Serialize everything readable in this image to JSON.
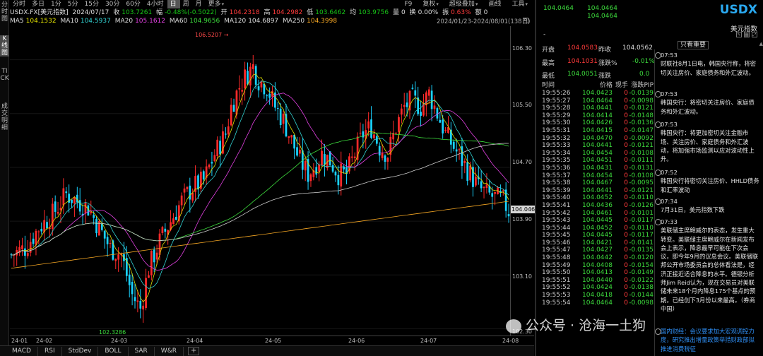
{
  "left_tabs": [
    {
      "label": "分时图",
      "selected": false
    },
    {
      "label": "K线图",
      "selected": true
    },
    {
      "label": "TICK",
      "selected": false
    },
    {
      "label": "成交明细",
      "selected": false
    }
  ],
  "toolbar": {
    "periods": [
      "分时",
      "多日",
      "1分",
      "5分",
      "15分",
      "30分",
      "60分",
      "4小时",
      "日",
      "周",
      "月",
      "更多"
    ],
    "selected": "日",
    "right_items": [
      "F9",
      "复权",
      "超级叠加",
      "画线",
      "工具"
    ]
  },
  "info_line": {
    "symbol": "USDX.FX[美元指数]",
    "date": "2024/07/17",
    "close_label": "收",
    "close": "103.7261",
    "change_label": "幅",
    "change": "-0.48%(-0.5022)",
    "open_label": "开",
    "open": "104.2318",
    "high_label": "高",
    "high": "104.2982",
    "low_label": "低",
    "low": "103.6462",
    "avg_label": "均",
    "avg": "103.9756",
    "vol_label": "量",
    "vol": "0",
    "turnover_label": "换",
    "turnover": "0.00%",
    "amp_label": "振",
    "amp": "0.63%",
    "amount_label": "额",
    "amount": "0"
  },
  "ma_line": [
    {
      "label": "MA5",
      "value": "104.1532",
      "color": "#e0e000"
    },
    {
      "label": "MA10",
      "value": "104.5937",
      "color": "#32d2d2"
    },
    {
      "label": "MA20",
      "value": "105.1612",
      "color": "#e040e0"
    },
    {
      "label": "MA60",
      "value": "104.9656",
      "color": "#3ddc3d"
    },
    {
      "label": "MA120",
      "value": "104.6897",
      "color": "#ddd"
    },
    {
      "label": "MA250",
      "value": "104.3998",
      "color": "#f5a623"
    }
  ],
  "range_label": "2024/01/23-2024/08/01(138日)",
  "chart_data": {
    "type": "candlestick",
    "ylim": [
      102.2,
      106.8
    ],
    "yticks": [
      "106.30",
      "105.50",
      "104.70",
      "103.90",
      "103.10",
      "102.30"
    ],
    "xticks": [
      "24-01",
      "24-02",
      "24-03",
      "24-04",
      "24-05",
      "24-06",
      "24-07",
      "24-08"
    ],
    "high_marker": "106.5207",
    "low_marker": "102.3286",
    "last_price_tag": "104.0464",
    "up_color": "#ff2a2a",
    "down_color": "#19d2ff"
  },
  "bottom_tabs": [
    "MACD",
    "RSI",
    "StdDev",
    "BOLL",
    "SAR",
    "W&R",
    "+"
  ],
  "quote": {
    "title": "USDX",
    "name": "美元指数",
    "price1": "104.0464",
    "price2": "104.0464",
    "price3": "104.0464",
    "dash": "-",
    "rows": [
      {
        "l1": "开盘",
        "v1": "104.0583",
        "l2": "昨收",
        "v2": "104.0562"
      },
      {
        "l1": "最高",
        "v1": "104.1031",
        "l2": "涨跌%",
        "v2": "-0.01%"
      },
      {
        "l1": "最低",
        "v1": "104.0051",
        "l2": "涨跌",
        "v2": "0.0"
      }
    ],
    "tick_headers": [
      "时间",
      "价格",
      "现手",
      "涨跌PIP"
    ],
    "ticks": [
      [
        "19:55:26",
        "104.0423",
        "0",
        "-0.0139"
      ],
      [
        "19:55:27",
        "104.0464",
        "0",
        "-0.0098"
      ],
      [
        "19:55:28",
        "104.0441",
        "0",
        "-0.0121"
      ],
      [
        "19:55:29",
        "104.0414",
        "0",
        "-0.0148"
      ],
      [
        "19:55:30",
        "104.0426",
        "0",
        "-0.0136"
      ],
      [
        "19:55:31",
        "104.0415",
        "0",
        "-0.0147"
      ],
      [
        "19:55:32",
        "104.0470",
        "0",
        "-0.0092"
      ],
      [
        "19:55:33",
        "104.0441",
        "0",
        "-0.0121"
      ],
      [
        "19:55:34",
        "104.0454",
        "0",
        "-0.0108"
      ],
      [
        "19:55:35",
        "104.0451",
        "0",
        "-0.0111"
      ],
      [
        "19:55:36",
        "104.0431",
        "0",
        "-0.0131"
      ],
      [
        "19:55:37",
        "104.0454",
        "0",
        "-0.0108"
      ],
      [
        "19:55:38",
        "104.0467",
        "0",
        "-0.0095"
      ],
      [
        "19:55:39",
        "104.0441",
        "0",
        "-0.0121"
      ],
      [
        "19:55:40",
        "104.0452",
        "0",
        "-0.0110"
      ],
      [
        "19:55:41",
        "104.0436",
        "0",
        "-0.0126"
      ],
      [
        "19:55:42",
        "104.0461",
        "0",
        "-0.0101"
      ],
      [
        "19:55:43",
        "104.0445",
        "0",
        "-0.0117"
      ],
      [
        "19:55:44",
        "104.0452",
        "0",
        "-0.0110"
      ],
      [
        "19:55:45",
        "104.0445",
        "0",
        "-0.0117"
      ],
      [
        "19:55:46",
        "104.0421",
        "0",
        "-0.0141"
      ],
      [
        "19:55:47",
        "104.0427",
        "0",
        "-0.0135"
      ],
      [
        "19:55:48",
        "104.0442",
        "0",
        "-0.0120"
      ],
      [
        "19:55:49",
        "104.0408",
        "0",
        "-0.0154"
      ],
      [
        "19:55:50",
        "104.0413",
        "0",
        "-0.0149"
      ],
      [
        "19:55:51",
        "104.0440",
        "0",
        "-0.0122"
      ],
      [
        "19:55:52",
        "104.0424",
        "0",
        "-0.0138"
      ],
      [
        "19:55:53",
        "104.0418",
        "0",
        "-0.0144"
      ],
      [
        "19:55:54",
        "104.0464",
        "0",
        "-0.0098"
      ]
    ],
    "news_toggle": "只看重要",
    "news": [
      {
        "time": "07:53",
        "text": "财联社8月1日电，韩国央行称，将密切关注房价、家庭债务和外汇波动。"
      },
      {
        "time": "07:53",
        "text": "韩国央行：将密切关注房价、家庭债务和外汇波动。"
      },
      {
        "time": "07:53",
        "text": "韩国央行：将更加密切关注金融市场、关注房价、家庭债务和外汇波动，将加强市场监测以应对波动性上升。"
      },
      {
        "time": "07:52",
        "text": "韩国央行将密切关注房价、HHLD债务和汇率波动"
      },
      {
        "time": "07:34",
        "text": "7月31日，美元指数下跌"
      },
      {
        "time": "07:33",
        "text": "美联储主席鲍威尔的表态，发生重大转变。美联储主席鲍威尔在新闻发布会上表示，降息最早可能在下次会议，即今年9月的议息会议。美联储联邦公开市场委员会的总体看法是，经济正接近适合降息的水平。德银分析师Jim Reid认为，现在交易员对美联储未来18个月内降息175个基点的预期，已经创下3月份以来最高。（券商中国）"
      }
    ],
    "news_link": "加大宏观调控力度，研究推出增量政策举措",
    "news_link_prefix": "国内财经：",
    "news_link_tail": "会议要求",
    "news_link_2": "财政部拟推进消费税征"
  },
  "watermark": "公众号 · 沧海一土狗"
}
